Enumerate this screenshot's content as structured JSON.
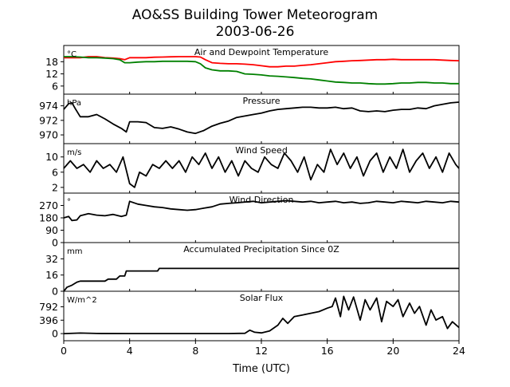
{
  "page_title": {
    "line1": "AO&SS Building Tower Meteorogram",
    "line2": "2003-06-26"
  },
  "colors": {
    "air_temperature": "#ff0000",
    "dewpoint": "#008000",
    "series": "#000000",
    "axes": "#000000",
    "background": "#ffffff"
  },
  "chart_data": {
    "type": "line",
    "layout": "stacked-panels",
    "shared_x": {
      "label": "Time (UTC)",
      "range": [
        0,
        24
      ],
      "ticks": [
        0,
        4,
        8,
        12,
        16,
        20,
        24
      ],
      "tick_labels": [
        "0",
        "4",
        "8",
        "12",
        "16",
        "20",
        "24"
      ]
    },
    "grid": false,
    "panels": [
      {
        "id": "temperature",
        "title": "Air and Dewpoint Temperature",
        "unit": "°C",
        "ylim": [
          2,
          26
        ],
        "yticks": [
          6,
          12,
          18
        ],
        "ytick_labels": [
          "6",
          "12",
          "18"
        ],
        "series": [
          {
            "color_key": "air_temperature",
            "x": [
              0,
              0.5,
              1,
              1.5,
              2,
              2.5,
              3,
              3.4,
              3.7,
              4,
              4.5,
              5,
              5.5,
              6,
              6.5,
              7,
              7.5,
              8,
              8.3,
              8.6,
              9,
              9.5,
              10,
              10.5,
              11,
              11.5,
              12,
              12.5,
              13,
              13.5,
              14,
              14.5,
              15,
              15.5,
              16,
              16.5,
              17,
              17.5,
              18,
              18.5,
              19,
              19.5,
              20,
              20.5,
              21,
              21.5,
              22,
              22.5,
              23,
              23.5,
              24
            ],
            "values": [
              20,
              20,
              20,
              20.5,
              20.5,
              20,
              19.8,
              19.5,
              19,
              20,
              20,
              20,
              20.2,
              20.3,
              20.4,
              20.5,
              20.5,
              20.5,
              20.3,
              19,
              17.5,
              17.2,
              17,
              17,
              16.8,
              16.5,
              16,
              15.5,
              15.5,
              15.8,
              15.8,
              16.2,
              16.5,
              17,
              17.5,
              18,
              18.2,
              18.5,
              18.6,
              18.8,
              19,
              19,
              19.2,
              19,
              19,
              19,
              19,
              19,
              18.8,
              18.6,
              18.5
            ]
          },
          {
            "color_key": "dewpoint",
            "x": [
              0,
              0.5,
              1,
              1.5,
              2,
              2.5,
              3,
              3.4,
              3.7,
              4,
              4.5,
              5,
              5.5,
              6,
              6.5,
              7,
              7.5,
              8,
              8.3,
              8.6,
              9,
              9.5,
              10,
              10.5,
              11,
              11.5,
              12,
              12.5,
              13,
              13.5,
              14,
              14.5,
              15,
              15.5,
              16,
              16.5,
              17,
              17.5,
              18,
              18.5,
              19,
              19.5,
              20,
              20.5,
              21,
              21.5,
              22,
              22.5,
              23,
              23.5,
              24
            ],
            "values": [
              20.5,
              20.5,
              20.3,
              20,
              20,
              19.8,
              19.5,
              19,
              17.5,
              17.5,
              17.8,
              18,
              18,
              18.2,
              18.2,
              18.2,
              18.2,
              18,
              17,
              15,
              14,
              13.5,
              13.5,
              13.2,
              12,
              11.8,
              11.5,
              11,
              10.8,
              10.5,
              10.2,
              9.8,
              9.5,
              9,
              8.5,
              8,
              7.8,
              7.5,
              7.5,
              7.2,
              7,
              7,
              7.2,
              7.5,
              7.5,
              7.8,
              7.8,
              7.5,
              7.5,
              7.2,
              7.2
            ]
          }
        ]
      },
      {
        "id": "pressure",
        "title": "Pressure",
        "unit": "hPa",
        "ylim": [
          968.8,
          975.6
        ],
        "yticks": [
          970,
          972,
          974
        ],
        "ytick_labels": [
          "970",
          "972",
          "974"
        ],
        "series": [
          {
            "color_key": "series",
            "x": [
              0,
              0.3,
              0.5,
              0.7,
              1,
              1.5,
              2,
              2.5,
              3,
              3.5,
              3.8,
              4,
              4.5,
              5,
              5.5,
              6,
              6.5,
              7,
              7.5,
              8,
              8.5,
              9,
              9.5,
              10,
              10.5,
              11,
              11.5,
              12,
              12.5,
              13,
              13.5,
              14,
              14.5,
              15,
              15.5,
              16,
              16.5,
              17,
              17.5,
              18,
              18.5,
              19,
              19.5,
              20,
              20.5,
              21,
              21.5,
              22,
              22.5,
              23,
              23.5,
              24
            ],
            "values": [
              973.5,
              974.3,
              974.4,
              973.6,
              972.5,
              972.5,
              972.8,
              972.2,
              971.5,
              970.9,
              970.4,
              971.8,
              971.8,
              971.7,
              971,
              970.9,
              971.1,
              970.8,
              970.4,
              970.2,
              970.6,
              971.2,
              971.6,
              971.9,
              972.4,
              972.6,
              972.8,
              973,
              973.3,
              973.5,
              973.6,
              973.7,
              973.8,
              973.8,
              973.7,
              973.7,
              973.8,
              973.6,
              973.7,
              973.3,
              973.2,
              973.3,
              973.2,
              973.4,
              973.5,
              973.5,
              973.7,
              973.6,
              974,
              974.2,
              974.4,
              974.5
            ]
          }
        ]
      },
      {
        "id": "wind-speed",
        "title": "Wind Speed",
        "unit": "m/s",
        "ylim": [
          0.5,
          13.5
        ],
        "yticks": [
          2,
          6,
          10
        ],
        "ytick_labels": [
          "2",
          "6",
          "10"
        ],
        "series": [
          {
            "color_key": "series",
            "x": [
              0,
              0.4,
              0.8,
              1.2,
              1.6,
              2,
              2.4,
              2.8,
              3.2,
              3.6,
              4,
              4.3,
              4.6,
              5,
              5.4,
              5.8,
              6.2,
              6.6,
              7,
              7.4,
              7.8,
              8.2,
              8.6,
              9,
              9.4,
              9.8,
              10.2,
              10.6,
              11,
              11.4,
              11.8,
              12.2,
              12.6,
              13,
              13.4,
              13.8,
              14.2,
              14.6,
              15,
              15.4,
              15.8,
              16.2,
              16.6,
              17,
              17.4,
              17.8,
              18.2,
              18.6,
              19,
              19.4,
              19.8,
              20.2,
              20.6,
              21,
              21.4,
              21.8,
              22.2,
              22.6,
              23,
              23.4,
              23.8,
              24
            ],
            "values": [
              7,
              9,
              7,
              8,
              6,
              9,
              7,
              8,
              6,
              10,
              3,
              2,
              6,
              5,
              8,
              7,
              9,
              7,
              9,
              6,
              10,
              8,
              11,
              7,
              10,
              6,
              9,
              5,
              9,
              7,
              6,
              10,
              8,
              7,
              11,
              9,
              6,
              10,
              4,
              8,
              6,
              12,
              8,
              11,
              7,
              10,
              5,
              9,
              11,
              6,
              10,
              7,
              12,
              6,
              9,
              11,
              7,
              10,
              6,
              11,
              8,
              7
            ]
          }
        ]
      },
      {
        "id": "wind-direction",
        "title": "Wind Direction",
        "unit": "°",
        "ylim": [
          0,
          360
        ],
        "yticks": [
          0,
          90,
          180,
          270
        ],
        "ytick_labels": [
          "0",
          "90",
          "180",
          "270"
        ],
        "series": [
          {
            "color_key": "series",
            "x": [
              0,
              0.3,
              0.5,
              0.8,
              1,
              1.5,
              2,
              2.5,
              3,
              3.5,
              3.8,
              4,
              4.5,
              5,
              5.5,
              6,
              6.5,
              7,
              7.5,
              8,
              8.5,
              9,
              9.5,
              10,
              10.5,
              11,
              11.5,
              12,
              12.5,
              13,
              13.5,
              14,
              14.5,
              15,
              15.5,
              16,
              16.5,
              17,
              17.5,
              18,
              18.5,
              19,
              19.5,
              20,
              20.5,
              21,
              21.5,
              22,
              22.5,
              23,
              23.5,
              24
            ],
            "values": [
              180,
              190,
              160,
              165,
              195,
              210,
              200,
              195,
              205,
              190,
              200,
              300,
              280,
              270,
              260,
              255,
              245,
              240,
              235,
              240,
              250,
              260,
              280,
              285,
              290,
              295,
              300,
              290,
              295,
              300,
              305,
              300,
              295,
              300,
              290,
              295,
              300,
              290,
              295,
              285,
              290,
              300,
              295,
              290,
              300,
              295,
              290,
              300,
              295,
              290,
              300,
              295
            ]
          }
        ]
      },
      {
        "id": "precipitation",
        "title": "Accumulated Precipitation Since 0Z",
        "unit": "mm",
        "ylim": [
          0,
          48
        ],
        "yticks": [
          0,
          16,
          32
        ],
        "ytick_labels": [
          "0",
          "16",
          "32"
        ],
        "series": [
          {
            "color_key": "series",
            "x": [
              0,
              0.2,
              0.5,
              0.8,
              1,
              2.5,
              2.7,
              3.2,
              3.4,
              3.7,
              3.8,
              5.7,
              5.8,
              24
            ],
            "values": [
              0,
              4,
              6,
              9,
              10,
              10,
              12,
              12,
              15,
              15,
              20,
              20,
              22.5,
              22.5
            ]
          }
        ]
      },
      {
        "id": "solar-flux",
        "title": "Solar Flux",
        "unit": "W/m^2",
        "ylim": [
          -210,
          1250
        ],
        "yticks": [
          0,
          396,
          792
        ],
        "ytick_labels": [
          "0",
          "396",
          "792"
        ],
        "series": [
          {
            "color_key": "series",
            "x": [
              0,
              1,
              2,
              4,
              6,
              8,
              10,
              11,
              11.3,
              11.6,
              12,
              12.5,
              13,
              13.3,
              13.6,
              14,
              14.5,
              15,
              15.5,
              16,
              16.3,
              16.5,
              16.8,
              17,
              17.3,
              17.6,
              18,
              18.3,
              18.6,
              19,
              19.3,
              19.6,
              20,
              20.3,
              20.6,
              21,
              21.3,
              21.6,
              22,
              22.3,
              22.6,
              23,
              23.3,
              23.6,
              24
            ],
            "values": [
              0,
              15,
              5,
              2,
              2,
              2,
              3,
              10,
              100,
              40,
              20,
              80,
              250,
              450,
              300,
              500,
              550,
              600,
              650,
              750,
              800,
              1050,
              500,
              1100,
              700,
              1080,
              400,
              1000,
              700,
              1050,
              350,
              950,
              800,
              1000,
              500,
              900,
              600,
              800,
              250,
              700,
              400,
              500,
              150,
              350,
              180
            ]
          }
        ]
      }
    ]
  }
}
